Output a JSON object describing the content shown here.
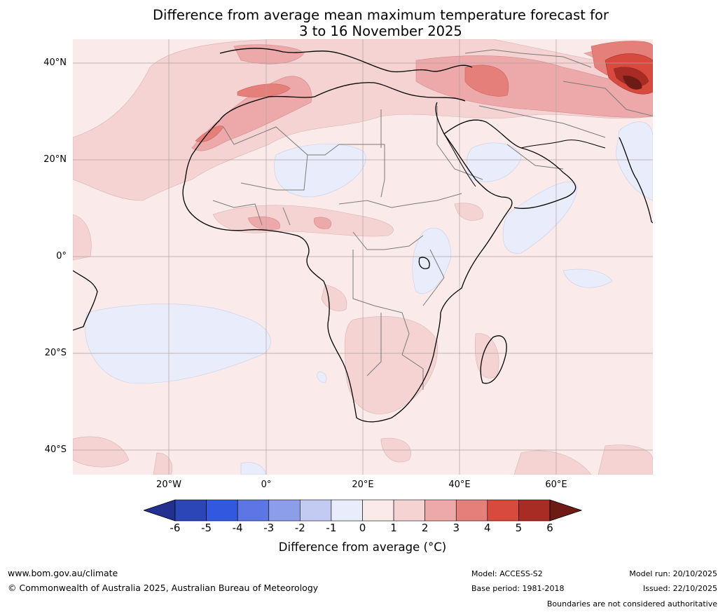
{
  "title": {
    "line1": "Difference from average mean maximum temperature forecast for",
    "line2": "3 to 16 November 2025"
  },
  "axes": {
    "lat_labels": [
      "40°N",
      "20°N",
      "0°",
      "20°S",
      "40°S"
    ],
    "lon_labels": [
      "20°W",
      "0°",
      "20°E",
      "40°E",
      "60°E"
    ]
  },
  "colorbar": {
    "ticks": [
      "-6",
      "-5",
      "-4",
      "-3",
      "-2",
      "-1",
      "0",
      "1",
      "2",
      "3",
      "4",
      "5",
      "6"
    ],
    "label": "Difference from average (°C)",
    "colors": [
      "#22318f",
      "#2a46b7",
      "#3358e0",
      "#5c77e3",
      "#8c9ee9",
      "#c3cbf3",
      "#e9edfb",
      "#fbeaea",
      "#f5d3d3",
      "#eda9a9",
      "#e47f7a",
      "#d84a3e",
      "#a82b24",
      "#6e1a15"
    ]
  },
  "footer": {
    "website": "www.bom.gov.au/climate",
    "copyright": "© Commonwealth of Australia 2025, Australian Bureau of Meteorology",
    "model": "Model: ACCESS-S2",
    "base_period": "Base period: 1981-2018",
    "model_run": "Model run: 20/10/2025",
    "issued": "Issued: 22/10/2025",
    "disclaimer": "Boundaries are not considered authoritative"
  }
}
